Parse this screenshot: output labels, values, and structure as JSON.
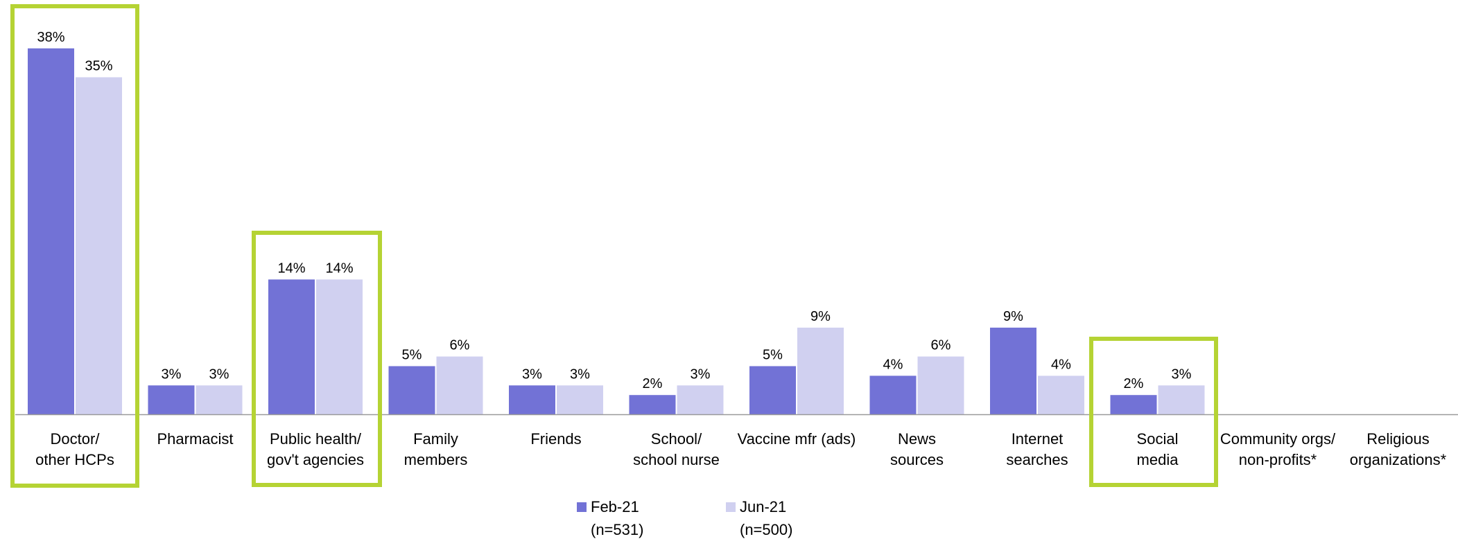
{
  "chart_data": {
    "type": "bar",
    "categories": [
      [
        "Doctor/",
        "other HCPs"
      ],
      [
        "Pharmacist"
      ],
      [
        "Public health/",
        "gov't agencies"
      ],
      [
        "Family",
        "members"
      ],
      [
        "Friends"
      ],
      [
        "School/",
        "school nurse"
      ],
      [
        "Vaccine mfr (ads)"
      ],
      [
        "News",
        "sources"
      ],
      [
        "Internet",
        "searches"
      ],
      [
        "Social",
        "media"
      ],
      [
        "Community orgs/",
        "non-profits*"
      ],
      [
        "Religious",
        "organizations*"
      ]
    ],
    "series": [
      {
        "name": "Feb-21",
        "legend_sub": "(n=531)",
        "color": "#7272d6",
        "values": [
          38,
          3,
          14,
          5,
          3,
          2,
          5,
          4,
          9,
          2,
          null,
          null
        ],
        "labels": [
          "38%",
          "3%",
          "14%",
          "5%",
          "3%",
          "2%",
          "5%",
          "4%",
          "9%",
          "2%",
          "",
          ""
        ]
      },
      {
        "name": "Jun-21",
        "legend_sub": "(n=500)",
        "color": "#d0d0f0",
        "values": [
          35,
          3,
          14,
          6,
          3,
          3,
          9,
          6,
          4,
          3,
          null,
          null
        ],
        "labels": [
          "35%",
          "3%",
          "14%",
          "6%",
          "3%",
          "3%",
          "9%",
          "6%",
          "4%",
          "3%",
          "",
          ""
        ]
      }
    ],
    "highlighted_categories": [
      0,
      2,
      9
    ],
    "highlight_color": "#b5d334",
    "axis_color": "#999999",
    "ylim": [
      0,
      40
    ],
    "grid": false,
    "legend_position": "bottom-center",
    "title": "",
    "xlabel": "",
    "ylabel": ""
  }
}
